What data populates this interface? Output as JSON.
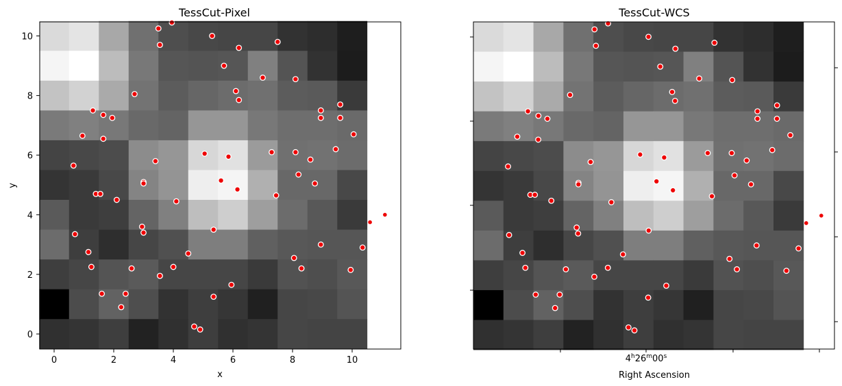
{
  "chart_data": [
    {
      "type": "heatmap",
      "title": "TessCut-Pixel",
      "xlabel": "x",
      "ylabel": "y",
      "xlim": [
        -0.5,
        11.6
      ],
      "ylim": [
        -0.5,
        10.5
      ],
      "x_ticks": [
        "0",
        "2",
        "4",
        "6",
        "8",
        "10"
      ],
      "y_ticks": [
        "0",
        "2",
        "4",
        "6",
        "8",
        "10"
      ],
      "grid": false,
      "colormap": "gray",
      "cells_rows_top_to_bottom": [
        [
          218,
          228,
          168,
          112,
          78,
          72,
          70,
          70,
          50,
          45,
          30
        ],
        [
          245,
          255,
          188,
          120,
          86,
          84,
          86,
          128,
          84,
          50,
          28
        ],
        [
          195,
          210,
          170,
          115,
          92,
          102,
          108,
          112,
          92,
          90,
          58
        ],
        [
          122,
          128,
          120,
          105,
          100,
          150,
          150,
          120,
          110,
          110,
          106
        ],
        [
          68,
          72,
          76,
          140,
          150,
          215,
          225,
          155,
          112,
          114,
          108
        ],
        [
          52,
          58,
          72,
          132,
          148,
          238,
          245,
          176,
          104,
          104,
          72
        ],
        [
          90,
          58,
          62,
          100,
          128,
          190,
          206,
          158,
          108,
          88,
          58
        ],
        [
          108,
          62,
          46,
          70,
          80,
          126,
          126,
          96,
          88,
          86,
          86
        ],
        [
          62,
          70,
          84,
          90,
          70,
          70,
          70,
          58,
          82,
          78,
          88
        ],
        [
          0,
          76,
          98,
          78,
          50,
          62,
          54,
          32,
          70,
          72,
          84
        ],
        [
          48,
          52,
          62,
          34,
          48,
          62,
          48,
          52,
          70,
          68,
          68
        ]
      ],
      "points_x": [
        3.5,
        3.95,
        5.3,
        3.55,
        6.2,
        7.5,
        5.7,
        7.0,
        8.1,
        2.7,
        6.1,
        6.2,
        1.3,
        1.65,
        1.95,
        8.95,
        9.6,
        8.95,
        9.6,
        0.95,
        1.65,
        10.05,
        5.05,
        5.85,
        7.3,
        8.1,
        9.45,
        8.6,
        0.65,
        3.4,
        5.6,
        6.15,
        8.2,
        3.0,
        3.0,
        8.75,
        1.4,
        1.55,
        2.1,
        7.45,
        4.1,
        10.6,
        11.1,
        2.95,
        5.35,
        0.7,
        3.0,
        8.95,
        1.15,
        10.35,
        4.5,
        8.05,
        1.25,
        2.6,
        4.0,
        8.3,
        3.55,
        9.95,
        5.95,
        1.6,
        2.4,
        5.35,
        2.25,
        4.7,
        4.9
      ],
      "points_y": [
        10.25,
        10.45,
        10.0,
        9.7,
        9.6,
        9.8,
        9.0,
        8.6,
        8.55,
        8.05,
        8.15,
        7.85,
        7.5,
        7.35,
        7.25,
        7.5,
        7.7,
        7.25,
        7.25,
        6.65,
        6.55,
        6.7,
        6.05,
        5.95,
        6.1,
        6.1,
        6.2,
        5.85,
        5.65,
        5.8,
        5.15,
        4.85,
        5.35,
        5.1,
        5.05,
        5.05,
        4.7,
        4.7,
        4.5,
        4.65,
        4.45,
        3.75,
        4.0,
        3.6,
        3.5,
        3.35,
        3.4,
        3.0,
        2.75,
        2.9,
        2.7,
        2.55,
        2.25,
        2.2,
        2.25,
        2.2,
        1.95,
        2.15,
        1.65,
        1.35,
        1.35,
        1.25,
        0.9,
        0.25,
        0.15
      ]
    },
    {
      "type": "heatmap",
      "title": "TessCut-WCS",
      "xlabel": "Right Ascension",
      "ylabel": "",
      "x_tick_label": "4h26m00s",
      "grid": false,
      "colormap": "gray",
      "same_data_as": "TessCut-Pixel"
    }
  ],
  "colors": {
    "marker_fill": "#ee0000",
    "marker_edge": "#ffffff",
    "background": "#ffffff"
  }
}
